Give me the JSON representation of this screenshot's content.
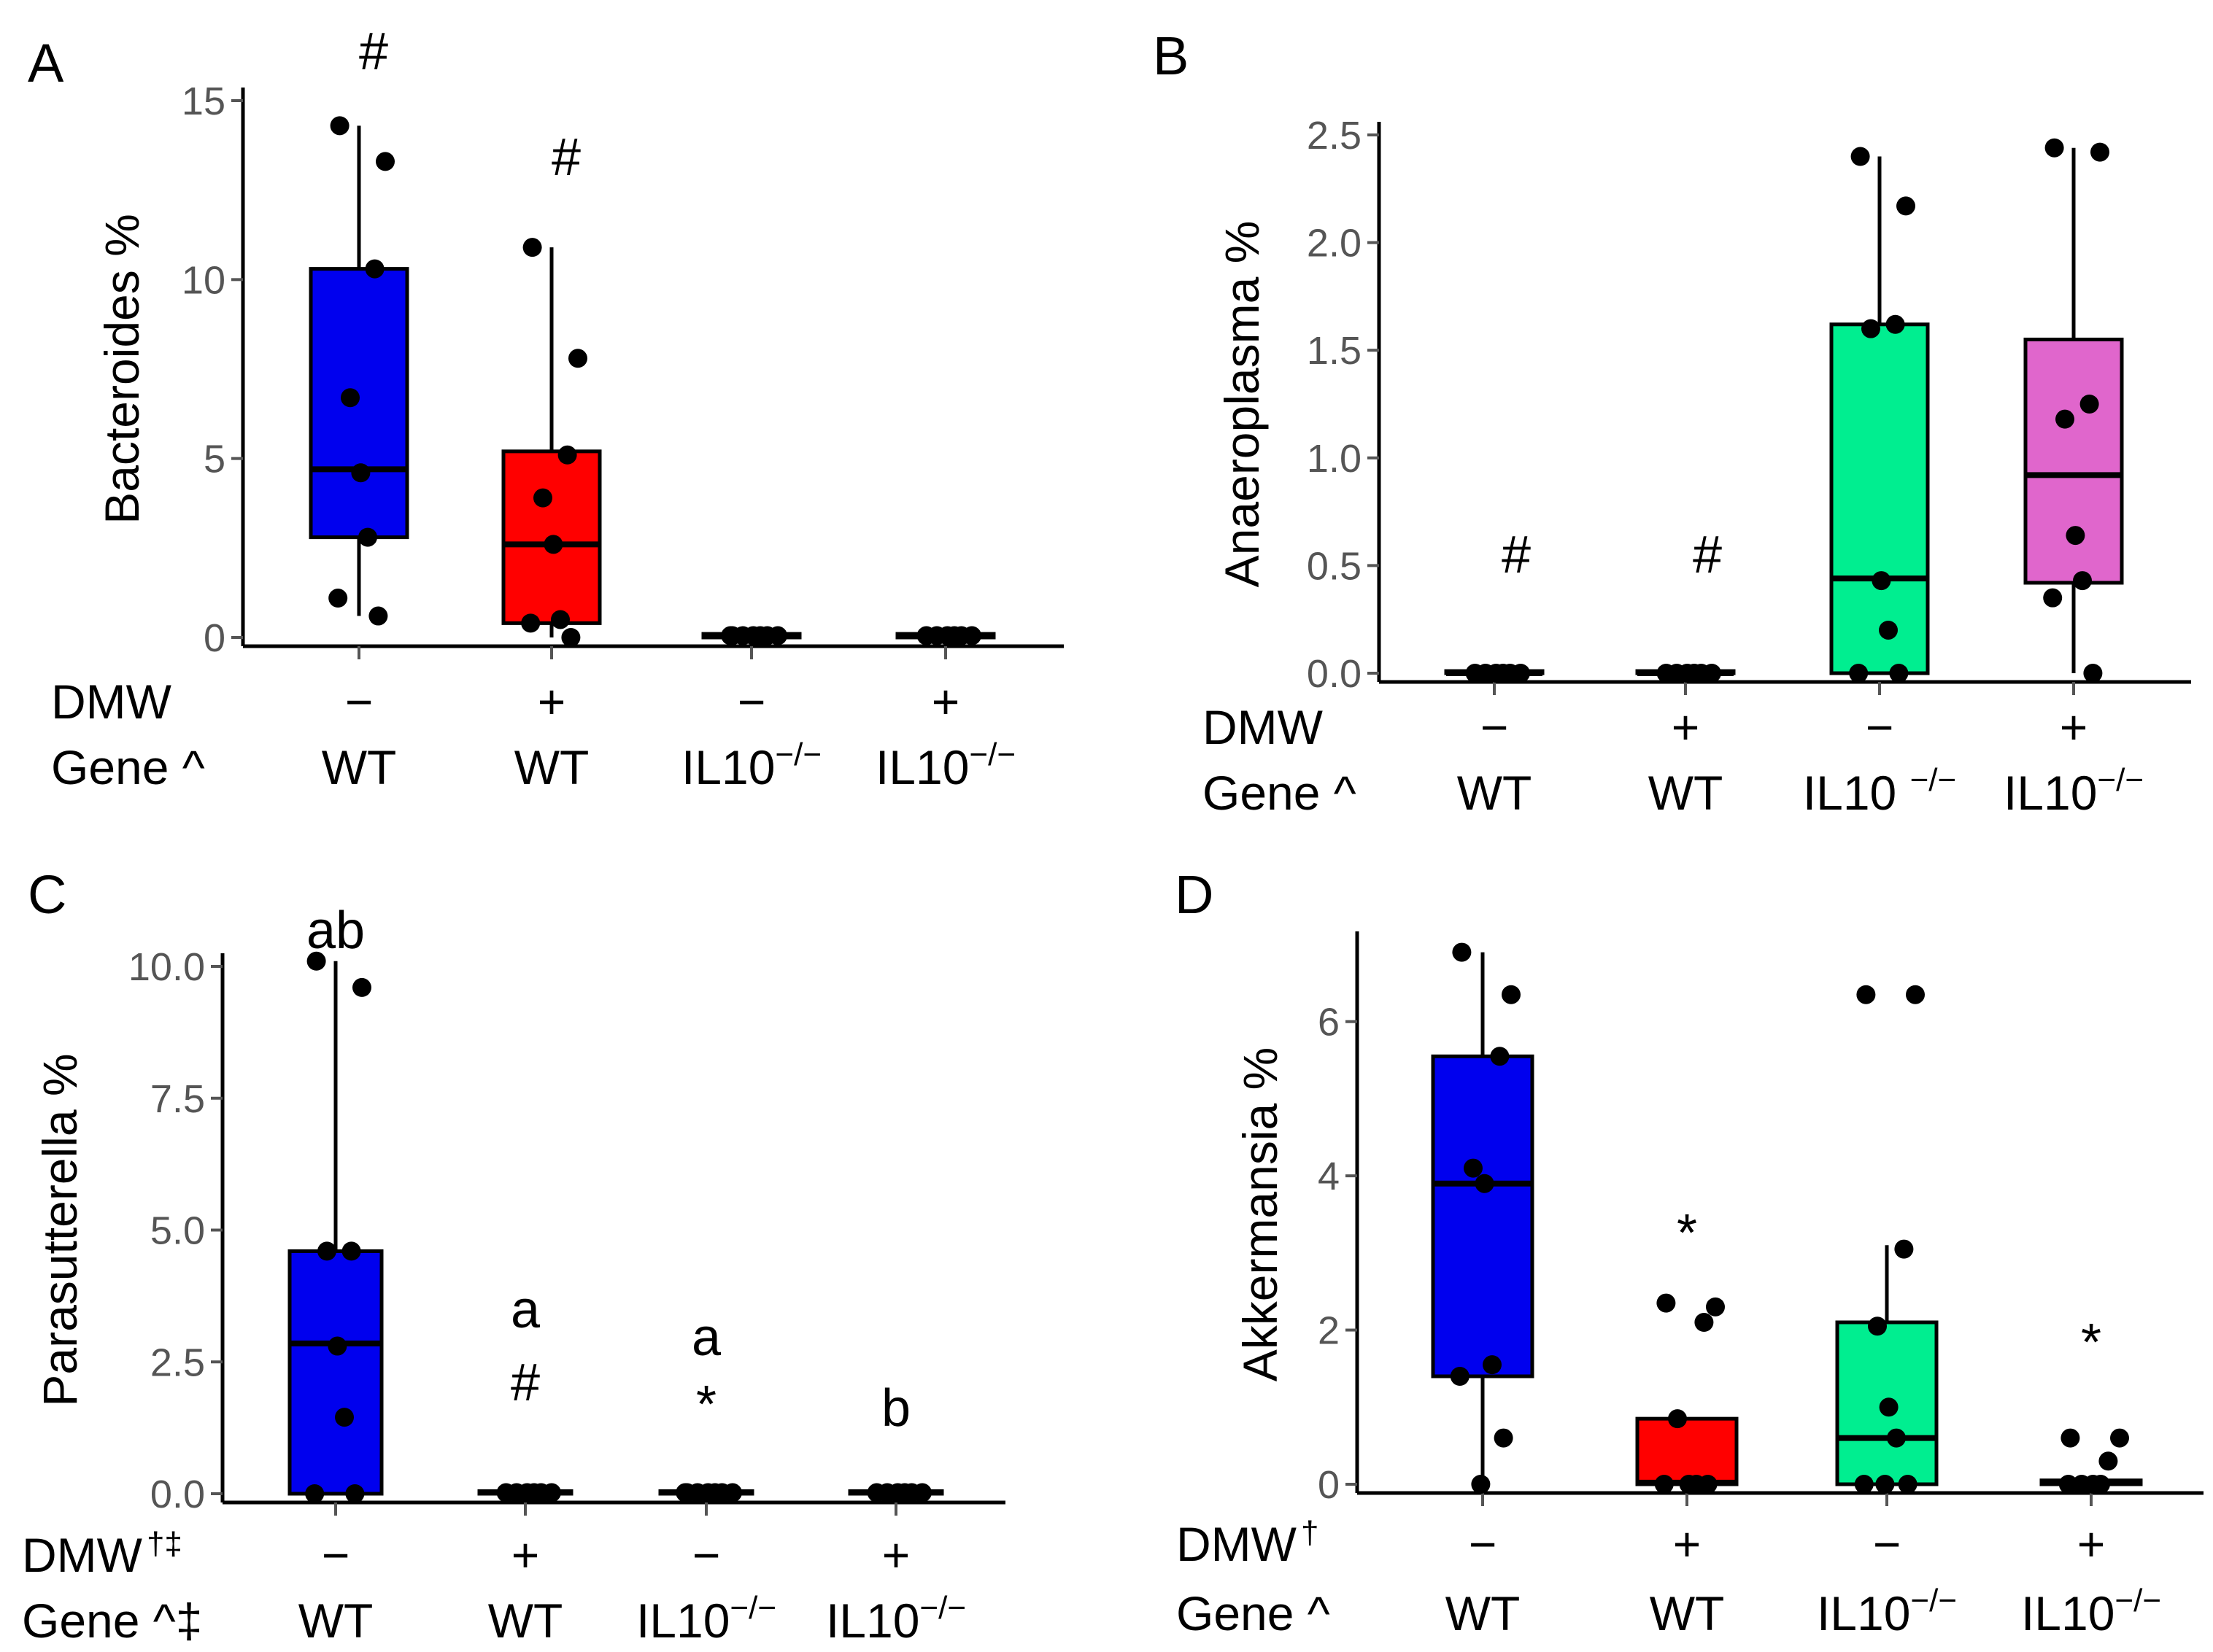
{
  "chart_data": [
    {
      "panel": "A",
      "type": "box",
      "ylabel": "Bacteroides %",
      "ylim": [
        0,
        15
      ],
      "yticks": [
        0,
        5,
        10,
        15
      ],
      "ytick_labels": [
        "0",
        "5",
        "10",
        "15"
      ],
      "row_labels": {
        "dmw": "DMW",
        "gene": "Gene ^"
      },
      "groups": [
        {
          "dmw": "−",
          "gene_base": "WT",
          "gene_sup": "",
          "color": "#0000ee",
          "box": {
            "q1": 2.8,
            "median": 4.7,
            "q3": 10.3,
            "whisker_low": 0.6,
            "whisker_high": 14.3
          },
          "points": [
            14.3,
            13.3,
            10.3,
            6.7,
            4.6,
            2.8,
            1.1,
            0.6
          ],
          "annotation": "#"
        },
        {
          "dmw": "+",
          "gene_base": "WT",
          "gene_sup": "",
          "color": "#ff0000",
          "box": {
            "q1": 0.4,
            "median": 2.6,
            "q3": 5.2,
            "whisker_low": 0.0,
            "whisker_high": 10.9
          },
          "points": [
            10.9,
            7.8,
            5.1,
            3.9,
            2.6,
            0.5,
            0.4,
            0.0
          ],
          "annotation": "#"
        },
        {
          "dmw": "−",
          "gene_base": "IL10",
          "gene_sup": "−/−",
          "color": "#00ee90",
          "box": {
            "q1": 0.0,
            "median": 0.05,
            "q3": 0.1,
            "whisker_low": 0.0,
            "whisker_high": 0.1
          },
          "points": [
            0.05,
            0.05,
            0.05,
            0.05,
            0.05,
            0.05,
            0.05
          ],
          "annotation": ""
        },
        {
          "dmw": "+",
          "gene_base": "IL10",
          "gene_sup": "−/−",
          "color": "#e066cc",
          "box": {
            "q1": 0.0,
            "median": 0.05,
            "q3": 0.1,
            "whisker_low": 0.0,
            "whisker_high": 0.1
          },
          "points": [
            0.05,
            0.05,
            0.05,
            0.05,
            0.05,
            0.05
          ],
          "annotation": ""
        }
      ]
    },
    {
      "panel": "B",
      "type": "box",
      "ylabel": "Anaeroplasma %",
      "ylim": [
        0,
        2.5
      ],
      "yticks": [
        0,
        0.5,
        1.0,
        1.5,
        2.0,
        2.5
      ],
      "ytick_labels": [
        "0.0",
        "0.5",
        "1.0",
        "1.5",
        "2.0",
        "2.5"
      ],
      "row_labels": {
        "dmw": "DMW",
        "gene": "Gene ^"
      },
      "groups": [
        {
          "dmw": "−",
          "gene_base": "WT",
          "gene_sup": "",
          "color": "#0000ee",
          "box": {
            "q1": 0.0,
            "median": 0.0,
            "q3": 0.01,
            "whisker_low": 0.0,
            "whisker_high": 0.01
          },
          "points": [
            0,
            0,
            0,
            0,
            0,
            0
          ],
          "annotation": "#"
        },
        {
          "dmw": "+",
          "gene_base": "WT",
          "gene_sup": "",
          "color": "#ff0000",
          "box": {
            "q1": 0.0,
            "median": 0.0,
            "q3": 0.01,
            "whisker_low": 0.0,
            "whisker_high": 0.01
          },
          "points": [
            0,
            0,
            0,
            0,
            0,
            0
          ],
          "annotation": "#"
        },
        {
          "dmw": "−",
          "gene_base": "IL10 ",
          "gene_sup": "−/−",
          "color": "#00ee90",
          "box": {
            "q1": 0.0,
            "median": 0.44,
            "q3": 1.62,
            "whisker_low": 0.0,
            "whisker_high": 2.4
          },
          "points": [
            2.4,
            2.17,
            1.62,
            1.6,
            0.43,
            0.2,
            0.0,
            0.0
          ],
          "annotation": ""
        },
        {
          "dmw": "+",
          "gene_base": "IL10",
          "gene_sup": "−/−",
          "color": "#e066cc",
          "box": {
            "q1": 0.42,
            "median": 0.92,
            "q3": 1.55,
            "whisker_low": 0.0,
            "whisker_high": 2.44
          },
          "points": [
            2.44,
            2.42,
            1.25,
            1.18,
            0.64,
            0.43,
            0.35,
            0.0
          ],
          "annotation": ""
        }
      ]
    },
    {
      "panel": "C",
      "type": "box",
      "ylabel": "Parasutterella %",
      "ylim": [
        0,
        10
      ],
      "yticks": [
        0,
        2.5,
        5.0,
        7.5,
        10.0
      ],
      "ytick_labels": [
        "0.0",
        "2.5",
        "5.0",
        "7.5",
        "10.0"
      ],
      "row_labels": {
        "dmw": "DMW",
        "dmw_sup": "†‡",
        "gene": "Gene ^‡"
      },
      "groups": [
        {
          "dmw": "−",
          "gene_base": "WT",
          "gene_sup": "",
          "color": "#0000ee",
          "box": {
            "q1": 0.0,
            "median": 2.85,
            "q3": 4.6,
            "whisker_low": 0.0,
            "whisker_high": 10.1
          },
          "points": [
            10.1,
            9.6,
            4.6,
            4.6,
            2.8,
            1.45,
            0.0,
            0.0
          ],
          "annotation": "ab"
        },
        {
          "dmw": "+",
          "gene_base": "WT",
          "gene_sup": "",
          "color": "#ff0000",
          "box": {
            "q1": 0.0,
            "median": 0.02,
            "q3": 0.05,
            "whisker_low": 0.0,
            "whisker_high": 0.05
          },
          "points": [
            0.02,
            0.02,
            0.02,
            0.02,
            0.02,
            0.02
          ],
          "annotation": "a",
          "annotation2": "#"
        },
        {
          "dmw": "−",
          "gene_base": "IL10",
          "gene_sup": "−/−",
          "color": "#00ee90",
          "box": {
            "q1": 0.0,
            "median": 0.02,
            "q3": 0.05,
            "whisker_low": 0.0,
            "whisker_high": 0.05
          },
          "points": [
            0.02,
            0.02,
            0.02,
            0.02,
            0.02,
            0.02,
            0.02
          ],
          "annotation": "a",
          "annotation2": "*"
        },
        {
          "dmw": "+",
          "gene_base": "IL10",
          "gene_sup": "−/−",
          "color": "#e066cc",
          "box": {
            "q1": 0.0,
            "median": 0.02,
            "q3": 0.05,
            "whisker_low": 0.0,
            "whisker_high": 0.05
          },
          "points": [
            0.02,
            0.02,
            0.02,
            0.02,
            0.02,
            0.02
          ],
          "annotation": "b"
        }
      ]
    },
    {
      "panel": "D",
      "type": "box",
      "ylabel": "Akkermansia %",
      "ylim": [
        0,
        7
      ],
      "yticks": [
        0,
        2,
        4,
        6
      ],
      "ytick_labels": [
        "0",
        "2",
        "4",
        "6"
      ],
      "row_labels": {
        "dmw": "DMW",
        "dmw_sup": "†",
        "gene": "Gene ^"
      },
      "groups": [
        {
          "dmw": "−",
          "gene_base": "WT",
          "gene_sup": "",
          "color": "#0000ee",
          "box": {
            "q1": 1.4,
            "median": 3.9,
            "q3": 5.55,
            "whisker_low": 0.0,
            "whisker_high": 6.9
          },
          "points": [
            6.9,
            6.35,
            5.55,
            4.1,
            3.9,
            1.55,
            1.4,
            0.6,
            0.0
          ],
          "annotation": ""
        },
        {
          "dmw": "+",
          "gene_base": "WT",
          "gene_sup": "",
          "color": "#ff0000",
          "box": {
            "q1": 0.0,
            "median": 0.02,
            "q3": 0.85,
            "whisker_low": 0.0,
            "whisker_high": 0.85
          },
          "points": [
            2.35,
            2.3,
            2.1,
            0.85,
            0.0,
            0.0,
            0.0,
            0.0
          ],
          "annotation": "*"
        },
        {
          "dmw": "−",
          "gene_base": "IL10",
          "gene_sup": "−/−",
          "color": "#00ee90",
          "box": {
            "q1": 0.0,
            "median": 0.6,
            "q3": 2.1,
            "whisker_low": 0.0,
            "whisker_high": 3.1
          },
          "points": [
            6.35,
            6.35,
            3.05,
            2.05,
            1.0,
            0.6,
            0.0,
            0.0,
            0.0
          ],
          "annotation": ""
        },
        {
          "dmw": "+",
          "gene_base": "IL10",
          "gene_sup": "−/−",
          "color": "#e066cc",
          "box": {
            "q1": 0.0,
            "median": 0.02,
            "q3": 0.05,
            "whisker_low": 0.0,
            "whisker_high": 0.05
          },
          "points": [
            0.6,
            0.6,
            0.3,
            0.0,
            0.0,
            0.0,
            0.0
          ],
          "annotation": "*"
        }
      ]
    }
  ]
}
